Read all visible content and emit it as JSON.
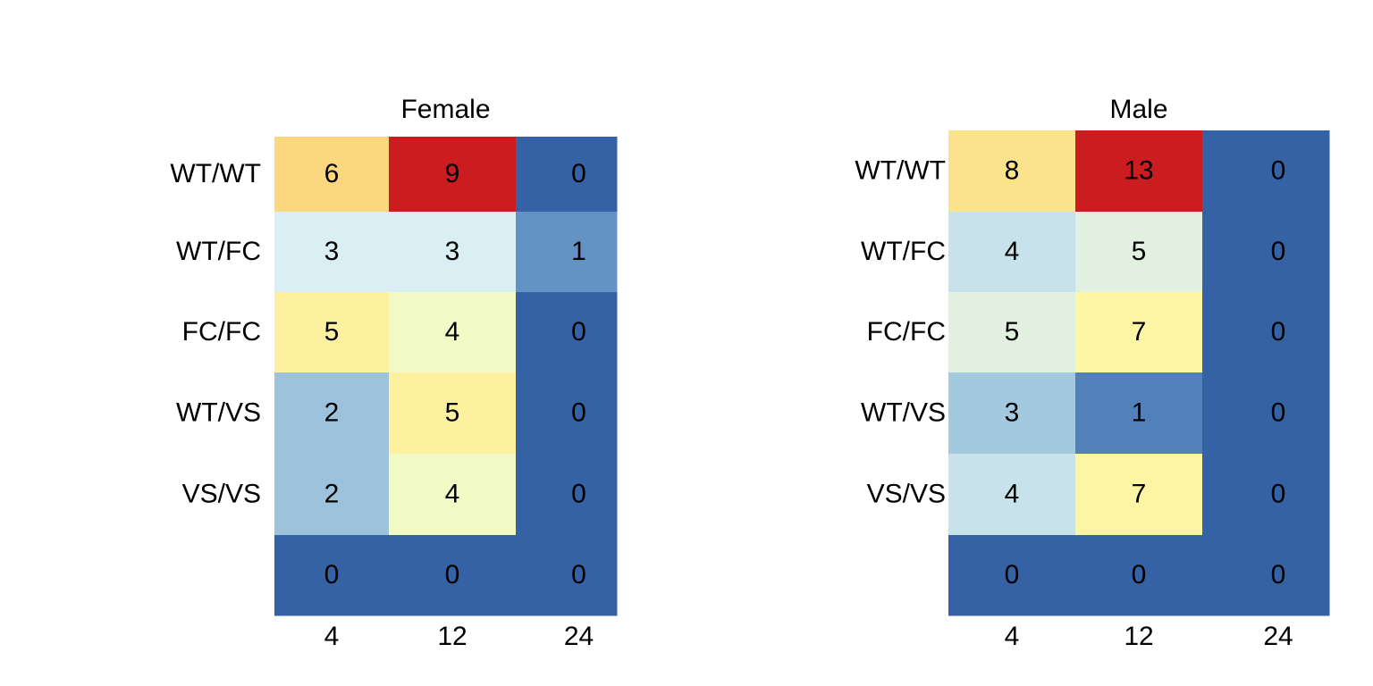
{
  "chart_data": [
    {
      "type": "heatmap",
      "title": "Female",
      "rows": [
        "WT/WT",
        "WT/FC",
        "FC/FC",
        "WT/VS",
        "VS/VS",
        ""
      ],
      "columns": [
        "4",
        "12",
        "24"
      ],
      "values": [
        [
          6,
          9,
          0
        ],
        [
          3,
          3,
          1
        ],
        [
          5,
          4,
          0
        ],
        [
          2,
          5,
          0
        ],
        [
          2,
          4,
          0
        ],
        [
          0,
          0,
          0
        ]
      ],
      "colors": [
        [
          "#fbd880",
          "#cb1c1f",
          "#3561a5"
        ],
        [
          "#d9eff3",
          "#d9eff3",
          "#6393c4"
        ],
        [
          "#fdf1a0",
          "#f1f9c4",
          "#3561a5"
        ],
        [
          "#9dc3dc",
          "#fdf1a0",
          "#3561a5"
        ],
        [
          "#9dc3dc",
          "#f1f9c4",
          "#3561a5"
        ],
        [
          "#3561a5",
          "#3561a5",
          "#3561a5"
        ]
      ]
    },
    {
      "type": "heatmap",
      "title": "Male",
      "rows": [
        "WT/WT",
        "WT/FC",
        "FC/FC",
        "WT/VS",
        "VS/VS",
        ""
      ],
      "columns": [
        "4",
        "12",
        "24"
      ],
      "values": [
        [
          8,
          13,
          0
        ],
        [
          4,
          5,
          0
        ],
        [
          5,
          7,
          0
        ],
        [
          3,
          1,
          0
        ],
        [
          4,
          7,
          0
        ],
        [
          0,
          0,
          0
        ]
      ],
      "colors": [
        [
          "#fbe38c",
          "#cb1c1f",
          "#3561a5"
        ],
        [
          "#c7e2ea",
          "#e2f1df",
          "#3561a5"
        ],
        [
          "#e2f1df",
          "#fcf5a4",
          "#3561a5"
        ],
        [
          "#a2c9de",
          "#5280b9",
          "#3561a5"
        ],
        [
          "#c7e2ea",
          "#fcf5a4",
          "#3561a5"
        ],
        [
          "#3561a5",
          "#3561a5",
          "#3561a5"
        ]
      ]
    }
  ]
}
